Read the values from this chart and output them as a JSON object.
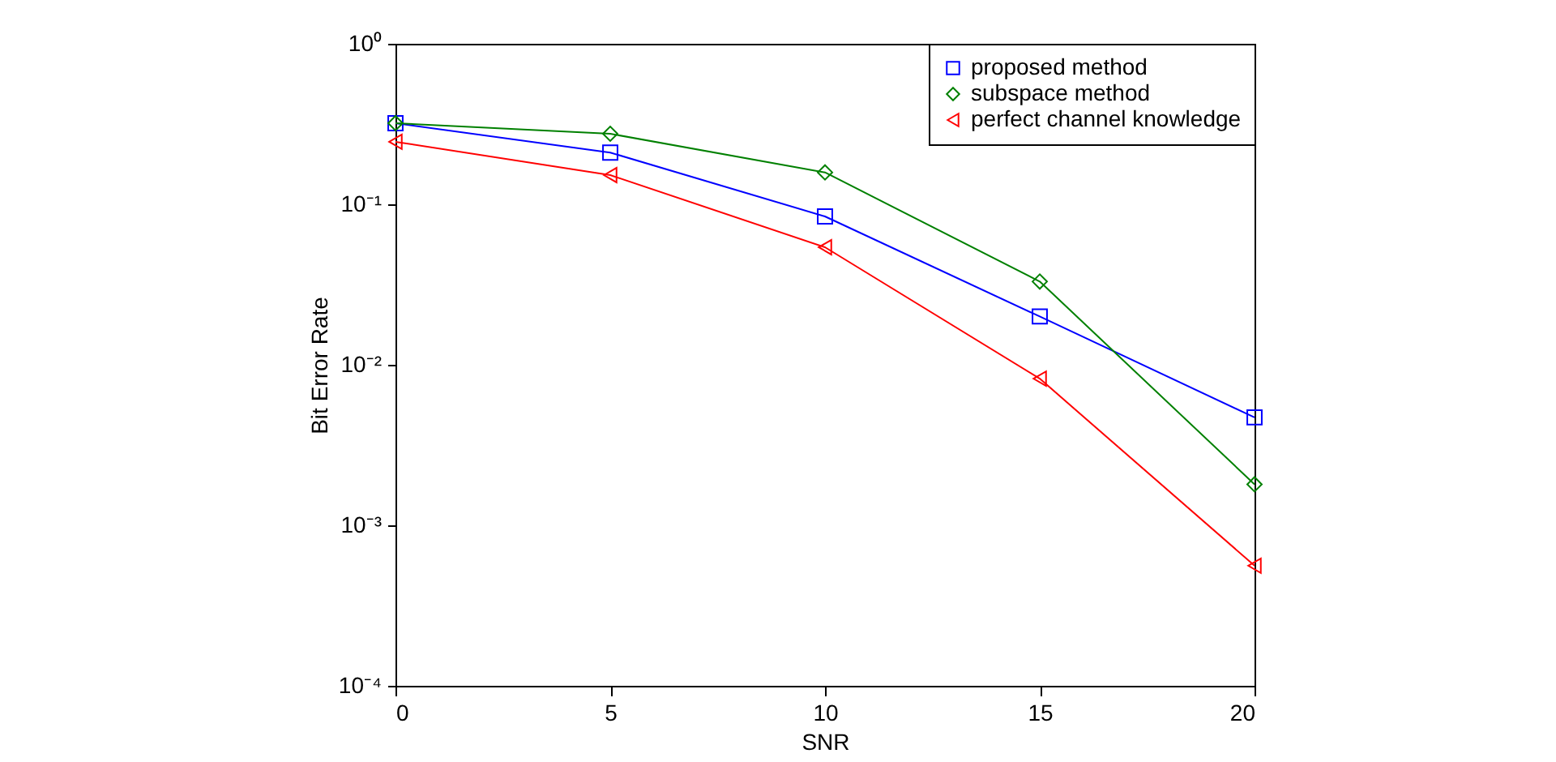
{
  "chart_data": {
    "type": "line",
    "xlabel": "SNR",
    "ylabel": "Bit Error Rate",
    "x": [
      0,
      5,
      10,
      15,
      20
    ],
    "log": "y",
    "xlim": [
      0,
      20
    ],
    "xticks": [
      0,
      5,
      10,
      15,
      20
    ],
    "ylim": [
      0.0001,
      1
    ],
    "yticks": [
      {
        "value": 0.0001,
        "label": "10⁻⁴"
      },
      {
        "value": 0.001,
        "label": "10⁻³"
      },
      {
        "value": 0.01,
        "label": "10⁻²"
      },
      {
        "value": 0.1,
        "label": "10⁻¹"
      },
      {
        "value": 1,
        "label": "10⁰"
      }
    ],
    "grid": false,
    "legend": "top right",
    "line_style": "solid",
    "series": [
      {
        "name": " proposed method",
        "color": "#0000ff",
        "marker": "square",
        "values": [
          0.32,
          0.21,
          0.084,
          0.02,
          0.0047
        ]
      },
      {
        "name": "subspace method",
        "color": "#008000",
        "marker": "diamond",
        "values": [
          0.32,
          0.275,
          0.158,
          0.033,
          0.0018
        ]
      },
      {
        "name": "perfect channel knowledge",
        "color": "#ff0000",
        "marker": "triangle",
        "values": [
          0.245,
          0.152,
          0.054,
          0.0082,
          0.00056
        ]
      }
    ]
  }
}
